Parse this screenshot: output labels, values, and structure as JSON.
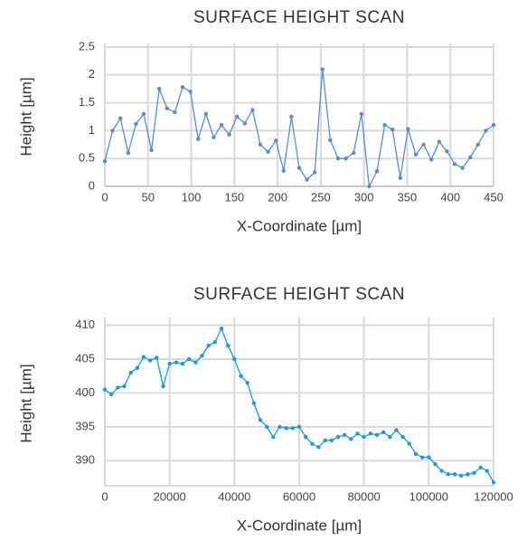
{
  "chart_data": [
    {
      "type": "line",
      "title": "SURFACE HEIGHT SCAN",
      "xlabel": "X-Coordinate [µm]",
      "ylabel": "Height [µm]",
      "color": "#5b8ec8",
      "grid": true,
      "x": [
        0,
        9,
        18,
        27,
        36,
        45,
        54,
        63,
        72,
        81,
        90,
        99,
        108,
        117,
        126,
        135,
        144,
        153,
        162,
        171,
        180,
        189,
        198,
        207,
        216,
        225,
        234,
        243,
        252,
        261,
        270,
        279,
        288,
        297,
        306,
        315,
        324,
        333,
        342,
        351,
        360,
        369,
        378,
        387,
        396,
        405,
        414,
        423,
        432,
        441,
        450
      ],
      "values": [
        0.45,
        1.0,
        1.22,
        0.6,
        1.12,
        1.3,
        0.65,
        1.75,
        1.4,
        1.33,
        1.78,
        1.7,
        0.85,
        1.3,
        0.88,
        1.1,
        0.93,
        1.25,
        1.13,
        1.37,
        0.75,
        0.62,
        0.82,
        0.28,
        1.25,
        0.33,
        0.12,
        0.25,
        2.1,
        0.83,
        0.5,
        0.5,
        0.6,
        1.3,
        0.0,
        0.27,
        1.1,
        1.02,
        0.15,
        1.03,
        0.57,
        0.75,
        0.48,
        0.8,
        0.63,
        0.4,
        0.33,
        0.52,
        0.75,
        1.0,
        1.1
      ],
      "xlim": [
        0,
        450
      ],
      "xticks": [
        0,
        50,
        100,
        150,
        200,
        250,
        300,
        350,
        400,
        450
      ],
      "ylim": [
        0,
        2.5
      ],
      "yticks": [
        0,
        0.5,
        1,
        1.5,
        2,
        2.5
      ]
    },
    {
      "type": "line",
      "title": "SURFACE HEIGHT SCAN",
      "xlabel": "X-Coordinate [µm]",
      "ylabel": "Height [µm]",
      "color": "#1f9ad6",
      "grid": true,
      "x": [
        0,
        2000,
        4000,
        6000,
        8000,
        10000,
        12000,
        14000,
        16000,
        18000,
        20000,
        22000,
        24000,
        26000,
        28000,
        30000,
        32000,
        34000,
        36000,
        38000,
        40000,
        42000,
        44000,
        46000,
        48000,
        50000,
        52000,
        54000,
        56000,
        58000,
        60000,
        62000,
        64000,
        66000,
        68000,
        70000,
        72000,
        74000,
        76000,
        78000,
        80000,
        82000,
        84000,
        86000,
        88000,
        90000,
        92000,
        94000,
        96000,
        98000,
        100000,
        102000,
        104000,
        106000,
        108000,
        110000,
        112000,
        114000,
        116000,
        118000,
        120000
      ],
      "values": [
        400.5,
        399.8,
        400.8,
        401,
        403,
        403.7,
        405.3,
        404.8,
        405.2,
        401,
        404.3,
        404.5,
        404.3,
        405,
        404.5,
        405.5,
        407,
        407.5,
        409.5,
        407,
        405,
        402.5,
        401.5,
        398.5,
        396,
        395,
        393.5,
        395,
        394.8,
        394.8,
        395,
        393.5,
        392.5,
        392,
        393,
        393,
        393.5,
        393.8,
        393.2,
        394,
        393.5,
        394,
        393.8,
        394.2,
        393.5,
        394.5,
        393.5,
        392.5,
        391,
        390.5,
        390.5,
        389.5,
        388.5,
        388,
        388,
        387.8,
        388,
        388.2,
        389,
        388.5,
        386.8
      ],
      "xlim": [
        0,
        120000
      ],
      "xticks": [
        0,
        20000,
        40000,
        60000,
        80000,
        100000,
        120000
      ],
      "ylim": [
        386.3,
        410.6
      ],
      "yticks": [
        390,
        395,
        400,
        405,
        410
      ]
    }
  ]
}
